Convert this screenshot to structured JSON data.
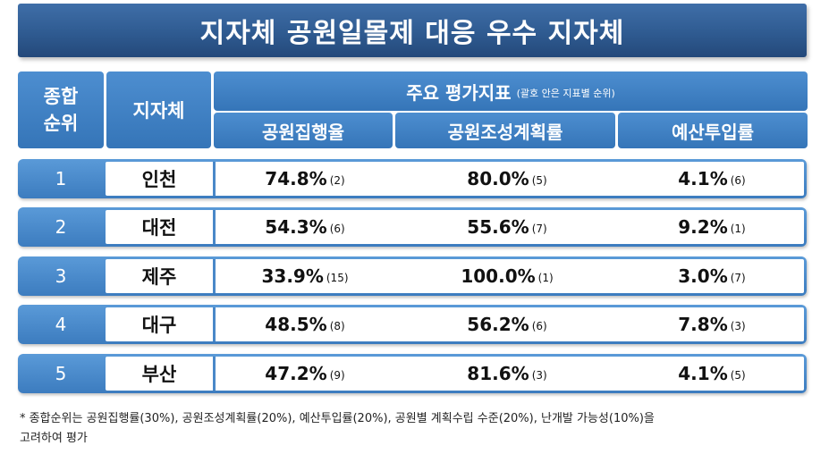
{
  "title": "지자체 공원일몰제 대응 우수 지자체",
  "header": {
    "rank_line1": "종합",
    "rank_line2": "순위",
    "region": "지자체",
    "main": "주요 평가지표",
    "main_note": "(괄호 안은 지표별 순위)",
    "col1": "공원집행율",
    "col2": "공원조성계획률",
    "col3": "예산투입률"
  },
  "rows": [
    {
      "rank": "1",
      "region": "인천",
      "c1": "74.8%",
      "c1r": "(2)",
      "c2": "80.0%",
      "c2r": "(5)",
      "c3": "4.1%",
      "c3r": "(6)"
    },
    {
      "rank": "2",
      "region": "대전",
      "c1": "54.3%",
      "c1r": "(6)",
      "c2": "55.6%",
      "c2r": "(7)",
      "c3": "9.2%",
      "c3r": "(1)"
    },
    {
      "rank": "3",
      "region": "제주",
      "c1": "33.9%",
      "c1r": "(15)",
      "c2": "100.0%",
      "c2r": "(1)",
      "c3": "3.0%",
      "c3r": "(7)"
    },
    {
      "rank": "4",
      "region": "대구",
      "c1": "48.5%",
      "c1r": "(8)",
      "c2": "56.2%",
      "c2r": "(6)",
      "c3": "7.8%",
      "c3r": "(3)"
    },
    {
      "rank": "5",
      "region": "부산",
      "c1": "47.2%",
      "c1r": "(9)",
      "c2": "81.6%",
      "c2r": "(3)",
      "c3": "4.1%",
      "c3r": "(5)"
    }
  ],
  "footnote_line1": "* 종합순위는 공원집행률(30%), 공원조성계획률(20%), 예산투입률(20%), 공원별 계획수립 수준(20%), 난개발 가능성(10%)을",
  "footnote_line2": "고려하여 평가"
}
